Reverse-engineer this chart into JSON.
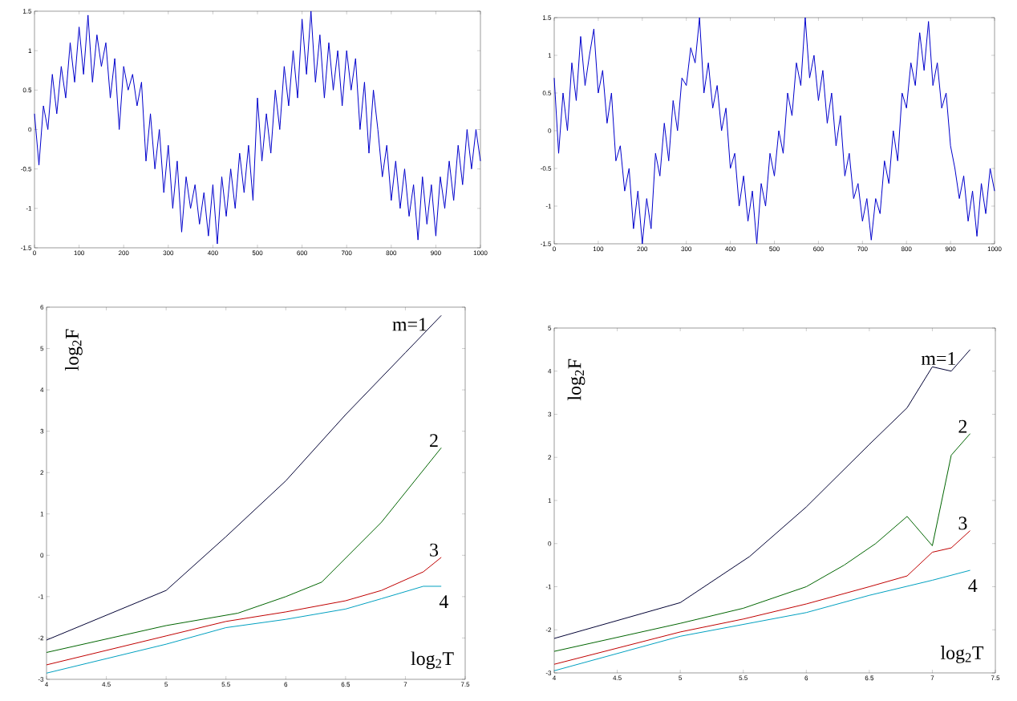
{
  "chart_data": [
    {
      "type": "line",
      "xlim": [
        0,
        1000
      ],
      "ylim": [
        -1.5,
        1.5
      ],
      "xticks": [
        0,
        100,
        200,
        300,
        400,
        500,
        600,
        700,
        800,
        900,
        1000
      ],
      "yticks": [
        -1.5,
        -1,
        -0.5,
        0,
        0.5,
        1,
        1.5
      ],
      "series": [
        {
          "color": "#0000cc",
          "x": [
            0,
            10,
            20,
            30,
            40,
            50,
            60,
            70,
            80,
            90,
            100,
            110,
            120,
            130,
            140,
            150,
            160,
            170,
            180,
            190,
            200,
            210,
            220,
            230,
            240,
            250,
            260,
            270,
            280,
            290,
            300,
            310,
            320,
            330,
            340,
            350,
            360,
            370,
            380,
            390,
            400,
            410,
            420,
            430,
            440,
            450,
            460,
            470,
            480,
            490,
            500,
            510,
            520,
            530,
            540,
            550,
            560,
            570,
            580,
            590,
            600,
            610,
            620,
            630,
            640,
            650,
            660,
            670,
            680,
            690,
            700,
            710,
            720,
            730,
            740,
            750,
            760,
            770,
            780,
            790,
            800,
            810,
            820,
            830,
            840,
            850,
            860,
            870,
            880,
            890,
            900,
            910,
            920,
            930,
            940,
            950,
            960,
            970,
            980,
            990,
            1000
          ],
          "values": [
            0.2,
            -0.45,
            0.3,
            0.0,
            0.7,
            0.2,
            0.8,
            0.4,
            1.1,
            0.6,
            1.3,
            0.7,
            1.45,
            0.6,
            1.2,
            0.8,
            1.1,
            0.4,
            0.9,
            0.0,
            0.8,
            0.5,
            0.7,
            0.3,
            0.6,
            -0.4,
            0.2,
            -0.5,
            0.0,
            -0.8,
            -0.2,
            -1.0,
            -0.4,
            -1.3,
            -0.6,
            -1.0,
            -0.7,
            -1.2,
            -0.8,
            -1.35,
            -0.7,
            -1.45,
            -0.6,
            -1.1,
            -0.5,
            -1.0,
            -0.3,
            -0.8,
            -0.2,
            -0.9,
            0.4,
            -0.4,
            0.2,
            -0.3,
            0.5,
            0.0,
            0.8,
            0.3,
            1.0,
            0.4,
            1.4,
            0.7,
            1.5,
            0.6,
            1.2,
            0.4,
            1.1,
            0.5,
            1.0,
            0.3,
            1.0,
            0.5,
            0.9,
            0.0,
            0.6,
            -0.3,
            0.5,
            0.0,
            -0.6,
            -0.2,
            -0.9,
            -0.4,
            -1.0,
            -0.5,
            -1.1,
            -0.7,
            -1.4,
            -0.6,
            -1.2,
            -0.7,
            -1.35,
            -0.6,
            -1.0,
            -0.4,
            -0.9,
            -0.2,
            -0.7,
            0.0,
            -0.5,
            0.0,
            -0.4
          ]
        }
      ]
    },
    {
      "type": "line",
      "xlim": [
        0,
        1000
      ],
      "ylim": [
        -1.5,
        1.5
      ],
      "xticks": [
        0,
        100,
        200,
        300,
        400,
        500,
        600,
        700,
        800,
        900,
        1000
      ],
      "yticks": [
        -1.5,
        -1,
        -0.5,
        0,
        0.5,
        1,
        1.5
      ],
      "series": [
        {
          "color": "#0000cc",
          "x": [
            0,
            10,
            20,
            30,
            40,
            50,
            60,
            70,
            80,
            90,
            100,
            110,
            120,
            130,
            140,
            150,
            160,
            170,
            180,
            190,
            200,
            210,
            220,
            230,
            240,
            250,
            260,
            270,
            280,
            290,
            300,
            310,
            320,
            330,
            340,
            350,
            360,
            370,
            380,
            390,
            400,
            410,
            420,
            430,
            440,
            450,
            460,
            470,
            480,
            490,
            500,
            510,
            520,
            530,
            540,
            550,
            560,
            570,
            580,
            590,
            600,
            610,
            620,
            630,
            640,
            650,
            660,
            670,
            680,
            690,
            700,
            710,
            720,
            730,
            740,
            750,
            760,
            770,
            780,
            790,
            800,
            810,
            820,
            830,
            840,
            850,
            860,
            870,
            880,
            890,
            900,
            910,
            920,
            930,
            940,
            950,
            960,
            970,
            980,
            990,
            1000
          ],
          "values": [
            0.7,
            -0.3,
            0.5,
            0.0,
            0.9,
            0.4,
            1.25,
            0.6,
            1.0,
            1.35,
            0.5,
            0.8,
            0.1,
            0.5,
            -0.4,
            -0.2,
            -0.8,
            -0.5,
            -1.3,
            -0.8,
            -1.5,
            -0.9,
            -1.3,
            -0.3,
            -0.6,
            0.1,
            -0.4,
            0.4,
            0.0,
            0.7,
            0.6,
            1.1,
            0.9,
            1.5,
            0.5,
            0.9,
            0.3,
            0.6,
            0.0,
            0.3,
            -0.5,
            -0.3,
            -1.0,
            -0.6,
            -1.2,
            -0.8,
            -1.5,
            -0.7,
            -1.0,
            -0.3,
            -0.6,
            0.0,
            -0.3,
            0.5,
            0.2,
            0.9,
            0.6,
            1.5,
            0.7,
            1.0,
            0.4,
            0.8,
            0.1,
            0.5,
            -0.2,
            0.2,
            -0.6,
            -0.3,
            -0.9,
            -0.7,
            -1.2,
            -0.9,
            -1.45,
            -0.9,
            -1.1,
            -0.4,
            -0.7,
            0.0,
            -0.4,
            0.5,
            0.3,
            0.9,
            0.6,
            1.3,
            0.8,
            1.45,
            0.6,
            0.9,
            0.3,
            0.5,
            -0.2,
            -0.5,
            -0.9,
            -0.6,
            -1.2,
            -0.8,
            -1.4,
            -0.7,
            -1.1,
            -0.5,
            -0.8
          ]
        }
      ]
    },
    {
      "type": "line",
      "xlabel": "log$_{2}$T",
      "ylabel": "log$_{2}$F",
      "xlim": [
        4,
        7.5
      ],
      "ylim": [
        -3,
        6
      ],
      "xticks": [
        4,
        4.5,
        5,
        5.5,
        6,
        6.5,
        7,
        7.5
      ],
      "yticks": [
        -3,
        -2,
        -1,
        0,
        1,
        2,
        3,
        4,
        5,
        6
      ],
      "series": [
        {
          "name": "m=1",
          "color": "#000033",
          "x": [
            4,
            5,
            5.5,
            6,
            6.5,
            7,
            7.3
          ],
          "values": [
            -2.05,
            -0.85,
            0.45,
            1.8,
            3.4,
            4.9,
            5.8
          ]
        },
        {
          "name": "2",
          "color": "#006400",
          "x": [
            4,
            5,
            5.6,
            6,
            6.3,
            6.8,
            7.3
          ],
          "values": [
            -2.35,
            -1.7,
            -1.4,
            -1.0,
            -0.65,
            0.8,
            2.6
          ]
        },
        {
          "name": "3",
          "color": "#c00000",
          "x": [
            4,
            5,
            5.5,
            6,
            6.5,
            6.8,
            7.15,
            7.3
          ],
          "values": [
            -2.65,
            -1.95,
            -1.6,
            -1.37,
            -1.1,
            -0.85,
            -0.4,
            -0.05
          ]
        },
        {
          "name": "4",
          "color": "#00a0c0",
          "x": [
            4,
            5,
            5.5,
            6,
            6.5,
            6.8,
            7.15,
            7.3
          ],
          "values": [
            -2.85,
            -2.15,
            -1.75,
            -1.55,
            -1.3,
            -1.05,
            -0.75,
            -0.75
          ]
        }
      ]
    },
    {
      "type": "line",
      "xlabel": "log$_{2}$T",
      "ylabel": "log$_{2}$F",
      "xlim": [
        4,
        7.5
      ],
      "ylim": [
        -3,
        5
      ],
      "xticks": [
        4,
        4.5,
        5,
        5.5,
        6,
        6.5,
        7,
        7.5
      ],
      "yticks": [
        -3,
        -2,
        -1,
        0,
        1,
        2,
        3,
        4,
        5
      ],
      "series": [
        {
          "name": "m=1",
          "color": "#000033",
          "x": [
            4,
            5,
            5.55,
            6,
            6.5,
            6.8,
            7,
            7.15,
            7.3
          ],
          "values": [
            -2.2,
            -1.37,
            -0.3,
            0.85,
            2.3,
            3.15,
            4.1,
            4.0,
            4.5
          ]
        },
        {
          "name": "2",
          "color": "#006400",
          "x": [
            4,
            5,
            5.5,
            6,
            6.3,
            6.55,
            6.8,
            7,
            7.15,
            7.3
          ],
          "values": [
            -2.5,
            -1.85,
            -1.5,
            -1.0,
            -0.5,
            0.0,
            0.63,
            -0.05,
            2.05,
            2.55
          ]
        },
        {
          "name": "3",
          "color": "#c00000",
          "x": [
            4,
            5,
            5.5,
            6,
            6.5,
            6.8,
            7,
            7.15,
            7.3
          ],
          "values": [
            -2.8,
            -2.05,
            -1.75,
            -1.4,
            -1.0,
            -0.75,
            -0.2,
            -0.1,
            0.3
          ]
        },
        {
          "name": "4",
          "color": "#00a0c0",
          "x": [
            4,
            5,
            6,
            6.5,
            7,
            7.3
          ],
          "values": [
            -2.95,
            -2.15,
            -1.6,
            -1.2,
            -0.85,
            -0.62
          ]
        }
      ]
    }
  ]
}
